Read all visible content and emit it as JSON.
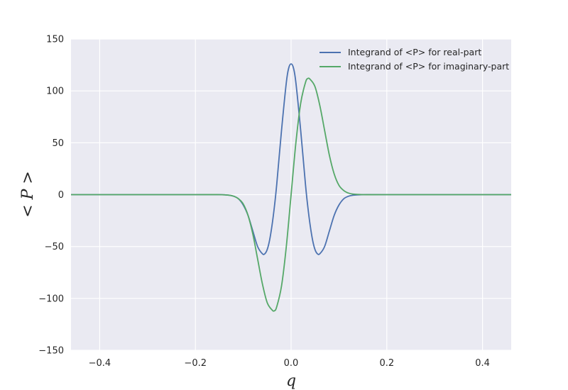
{
  "chart_data": {
    "type": "line",
    "xlabel": "q",
    "ylabel": "< P >",
    "xlim": [
      -0.46,
      0.46
    ],
    "ylim": [
      -150,
      150
    ],
    "xticks": [
      -0.4,
      -0.2,
      0.0,
      0.2,
      0.4
    ],
    "xtick_labels": [
      "−0.4",
      "−0.2",
      "0.0",
      "0.2",
      "0.4"
    ],
    "yticks": [
      -150,
      -100,
      -50,
      0,
      50,
      100,
      150
    ],
    "ytick_labels": [
      "−150",
      "−100",
      "−50",
      "0",
      "50",
      "100",
      "150"
    ],
    "grid": true,
    "legend_position": "top-right",
    "series": [
      {
        "name": "Integrand of <P> for real-part",
        "color": "#4c72b0",
        "x": [
          -0.46,
          -0.2,
          -0.15,
          -0.13,
          -0.12,
          -0.11,
          -0.1,
          -0.09,
          -0.08,
          -0.07,
          -0.06,
          -0.055,
          -0.05,
          -0.045,
          -0.04,
          -0.035,
          -0.03,
          -0.02,
          -0.01,
          -0.005,
          0.0,
          0.005,
          0.01,
          0.02,
          0.03,
          0.035,
          0.04,
          0.045,
          0.05,
          0.055,
          0.06,
          0.07,
          0.08,
          0.09,
          0.1,
          0.11,
          0.12,
          0.13,
          0.15,
          0.2,
          0.46
        ],
        "y": [
          0,
          0,
          0,
          -0.5,
          -1.5,
          -4,
          -10,
          -20,
          -35,
          -50,
          -57,
          -57,
          -53,
          -44,
          -30,
          -12,
          10,
          62,
          108,
          122,
          126,
          122,
          108,
          62,
          10,
          -12,
          -30,
          -44,
          -53,
          -57,
          -57,
          -50,
          -35,
          -20,
          -10,
          -4,
          -1.5,
          -0.5,
          0,
          0,
          0
        ]
      },
      {
        "name": "Integrand of <P> for imaginary-part",
        "color": "#55a868",
        "x": [
          -0.46,
          -0.2,
          -0.15,
          -0.13,
          -0.12,
          -0.11,
          -0.1,
          -0.09,
          -0.08,
          -0.07,
          -0.06,
          -0.05,
          -0.04,
          -0.035,
          -0.03,
          -0.02,
          -0.01,
          0.0,
          0.01,
          0.02,
          0.03,
          0.035,
          0.04,
          0.05,
          0.06,
          0.07,
          0.08,
          0.09,
          0.1,
          0.11,
          0.12,
          0.13,
          0.15,
          0.2,
          0.46
        ],
        "y": [
          0,
          0,
          0,
          -0.5,
          -1.5,
          -4,
          -9,
          -20,
          -38,
          -62,
          -86,
          -104,
          -111,
          -112,
          -108,
          -88,
          -50,
          0,
          50,
          88,
          108,
          112,
          111,
          104,
          86,
          62,
          38,
          20,
          9,
          4,
          1.5,
          0.5,
          0,
          0,
          0
        ]
      }
    ]
  }
}
